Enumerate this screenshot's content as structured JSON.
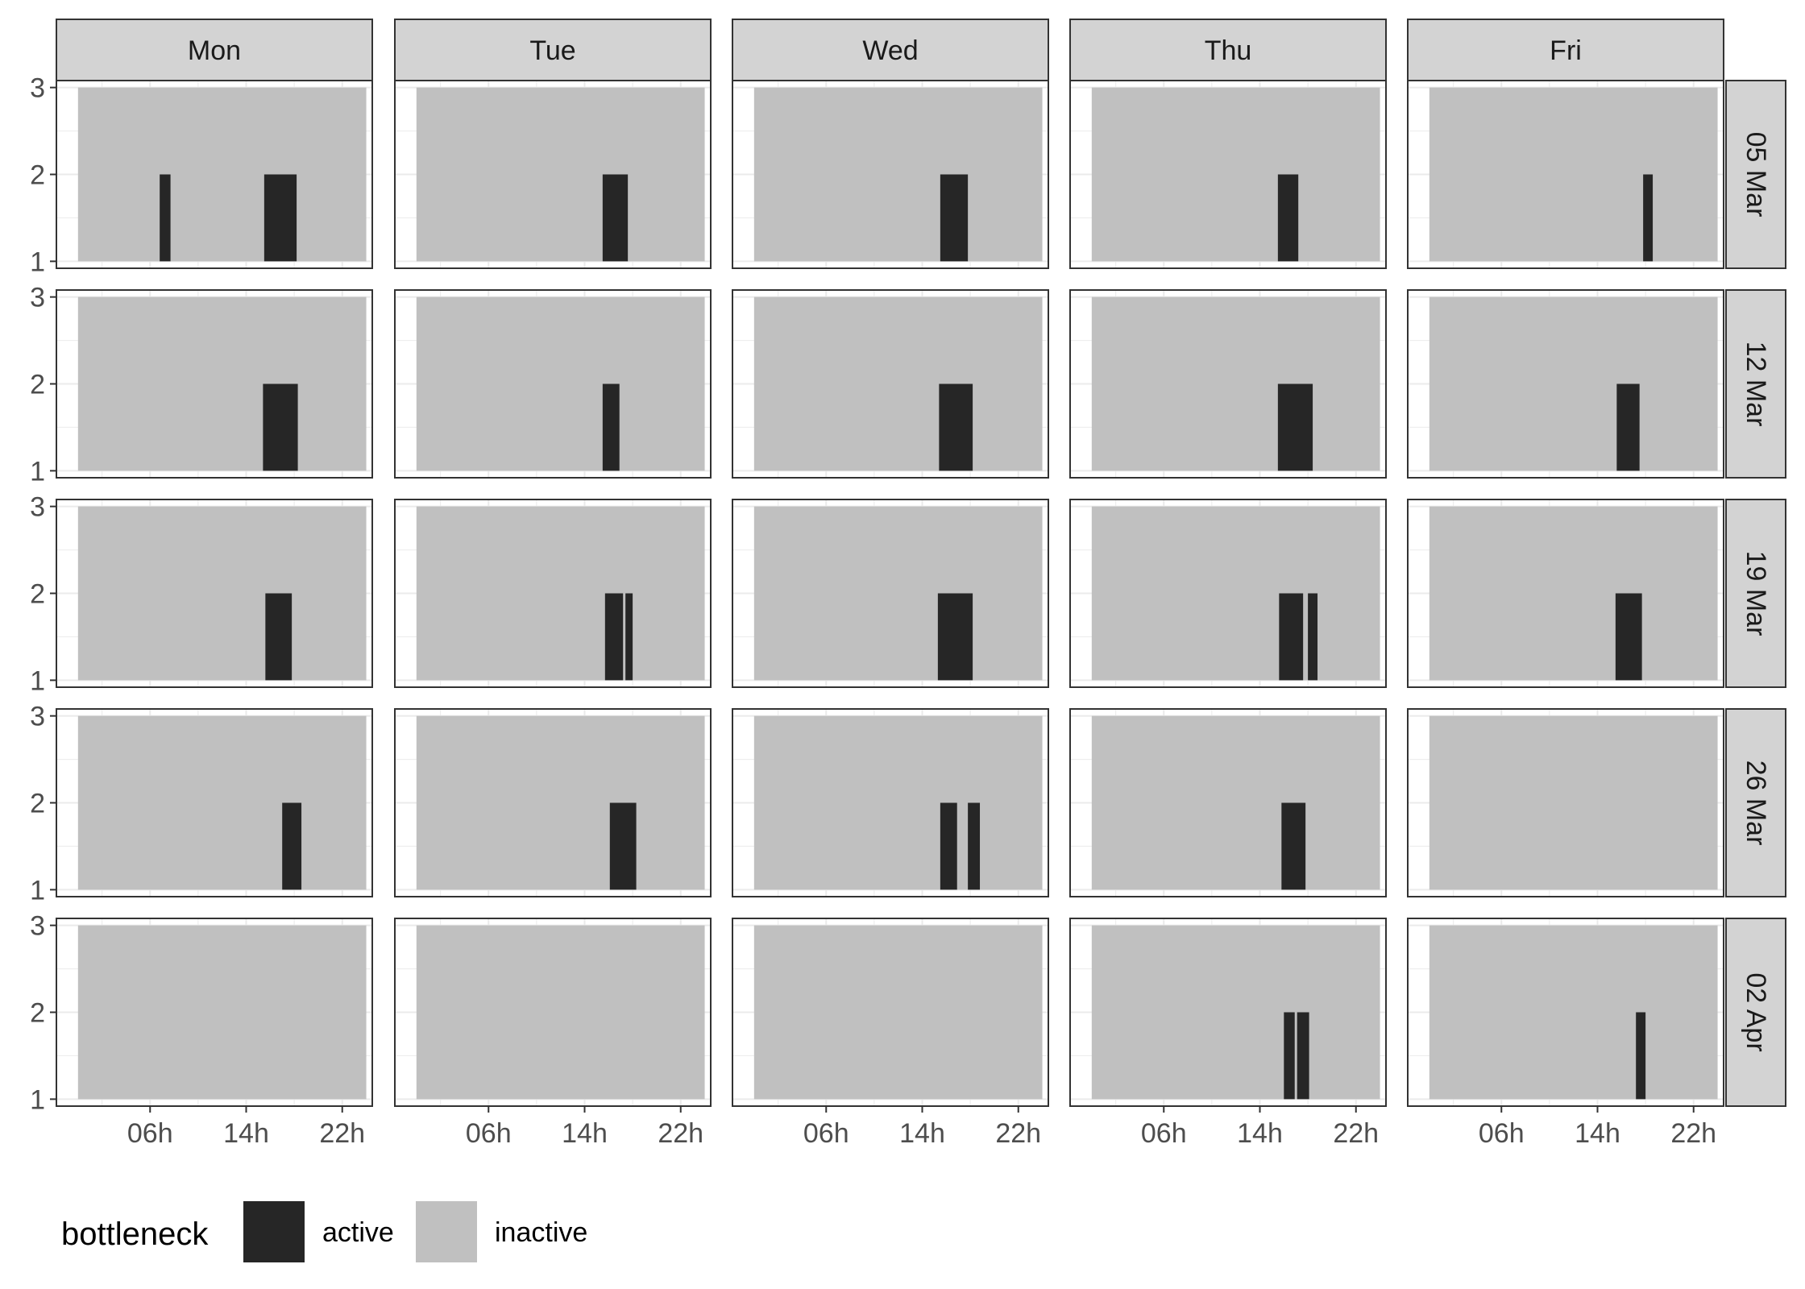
{
  "chart_data": {
    "type": "bar",
    "facet_cols": [
      "Mon",
      "Tue",
      "Wed",
      "Thu",
      "Fri"
    ],
    "facet_rows": [
      "05 Mar",
      "12 Mar",
      "19 Mar",
      "26 Mar",
      "02 Apr"
    ],
    "x_ticks": [
      "06h",
      "14h",
      "22h"
    ],
    "x_tick_values": [
      6,
      14,
      22
    ],
    "xlim": [
      -1.8,
      24.5
    ],
    "y_ticks": [
      "1",
      "2",
      "3"
    ],
    "y_tick_values": [
      1,
      2,
      3
    ],
    "ylim": [
      0.92,
      3.08
    ],
    "background_band": {
      "x": [
        0,
        24
      ],
      "y": [
        1,
        3
      ],
      "state": "inactive"
    },
    "active_bottom": 1,
    "active_top": 2,
    "colors": {
      "active": "#262626",
      "inactive": "#c0c0c0",
      "strip": "#d3d3d3",
      "grid": "#ebebeb",
      "panel_border": "#333333"
    },
    "legend": {
      "title": "bottleneck",
      "position": "bottom-left",
      "items": [
        {
          "label": "active",
          "color": "#262626"
        },
        {
          "label": "inactive",
          "color": "#c0c0c0"
        }
      ]
    },
    "active_periods": [
      {
        "row": "05 Mar",
        "col": "Mon",
        "start": 6.8,
        "end": 7.7
      },
      {
        "row": "05 Mar",
        "col": "Mon",
        "start": 15.5,
        "end": 18.2
      },
      {
        "row": "05 Mar",
        "col": "Tue",
        "start": 15.5,
        "end": 17.6
      },
      {
        "row": "05 Mar",
        "col": "Wed",
        "start": 15.5,
        "end": 17.8
      },
      {
        "row": "05 Mar",
        "col": "Thu",
        "start": 15.5,
        "end": 17.2
      },
      {
        "row": "05 Mar",
        "col": "Fri",
        "start": 17.8,
        "end": 18.6
      },
      {
        "row": "12 Mar",
        "col": "Mon",
        "start": 15.4,
        "end": 18.3
      },
      {
        "row": "12 Mar",
        "col": "Tue",
        "start": 15.5,
        "end": 16.9
      },
      {
        "row": "12 Mar",
        "col": "Wed",
        "start": 15.4,
        "end": 18.2
      },
      {
        "row": "12 Mar",
        "col": "Thu",
        "start": 15.5,
        "end": 18.4
      },
      {
        "row": "12 Mar",
        "col": "Fri",
        "start": 15.6,
        "end": 17.5
      },
      {
        "row": "19 Mar",
        "col": "Mon",
        "start": 15.6,
        "end": 17.8
      },
      {
        "row": "19 Mar",
        "col": "Tue",
        "start": 15.7,
        "end": 17.2
      },
      {
        "row": "19 Mar",
        "col": "Tue",
        "start": 17.4,
        "end": 18.0
      },
      {
        "row": "19 Mar",
        "col": "Wed",
        "start": 15.3,
        "end": 18.2
      },
      {
        "row": "19 Mar",
        "col": "Thu",
        "start": 15.6,
        "end": 17.6
      },
      {
        "row": "19 Mar",
        "col": "Thu",
        "start": 18.0,
        "end": 18.8
      },
      {
        "row": "19 Mar",
        "col": "Fri",
        "start": 15.5,
        "end": 17.7
      },
      {
        "row": "26 Mar",
        "col": "Mon",
        "start": 17.0,
        "end": 18.6
      },
      {
        "row": "26 Mar",
        "col": "Tue",
        "start": 16.1,
        "end": 18.3
      },
      {
        "row": "26 Mar",
        "col": "Wed",
        "start": 15.5,
        "end": 16.9
      },
      {
        "row": "26 Mar",
        "col": "Wed",
        "start": 17.8,
        "end": 18.8
      },
      {
        "row": "26 Mar",
        "col": "Thu",
        "start": 15.8,
        "end": 17.8
      },
      {
        "row": "02 Apr",
        "col": "Thu",
        "start": 16.0,
        "end": 16.9
      },
      {
        "row": "02 Apr",
        "col": "Thu",
        "start": 17.1,
        "end": 18.1
      },
      {
        "row": "02 Apr",
        "col": "Fri",
        "start": 17.2,
        "end": 18.0
      }
    ]
  }
}
